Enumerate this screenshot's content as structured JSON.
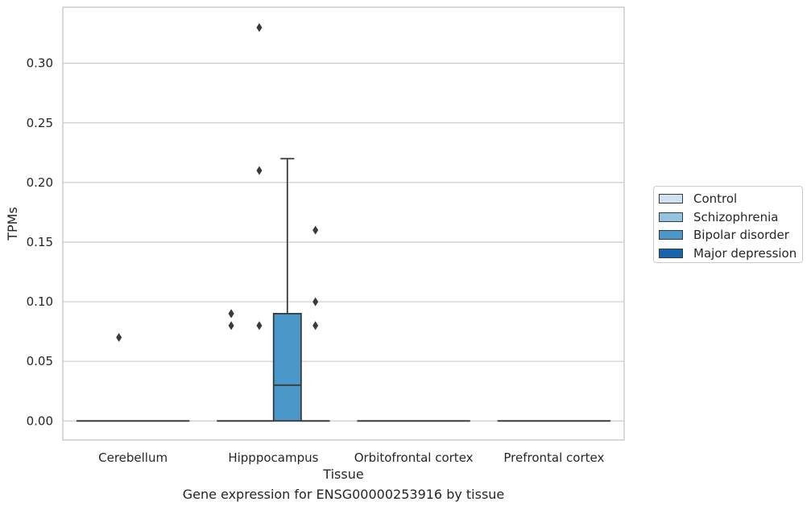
{
  "chart_data": {
    "type": "box",
    "xlabel": "Tissue",
    "ylabel": "TPMs",
    "caption": "Gene expression for ENSG00000253916 by tissue",
    "categories": [
      "Cerebellum",
      "Hipppocampus",
      "Orbitofrontal cortex",
      "Prefrontal cortex"
    ],
    "ylim": [
      -0.016,
      0.347
    ],
    "yticks": [
      0.0,
      0.05,
      0.1,
      0.15,
      0.2,
      0.25,
      0.3
    ],
    "ytick_labels": [
      "0.00",
      "0.05",
      "0.10",
      "0.15",
      "0.20",
      "0.25",
      "0.30"
    ],
    "grid": true,
    "legend_position": "right",
    "series": [
      {
        "name": "Control",
        "color": "#d0e1f2",
        "boxes": [
          {
            "q1": 0,
            "median": 0,
            "q3": 0,
            "whisker_low": 0,
            "whisker_high": 0,
            "outliers": []
          },
          {
            "q1": 0,
            "median": 0,
            "q3": 0,
            "whisker_low": 0,
            "whisker_high": 0,
            "outliers": [
              0.08,
              0.09,
              0.09
            ]
          },
          {
            "q1": 0,
            "median": 0,
            "q3": 0,
            "whisker_low": 0,
            "whisker_high": 0,
            "outliers": []
          },
          {
            "q1": 0,
            "median": 0,
            "q3": 0,
            "whisker_low": 0,
            "whisker_high": 0,
            "outliers": []
          }
        ]
      },
      {
        "name": "Schizophrenia",
        "color": "#94c4df",
        "boxes": [
          {
            "q1": 0,
            "median": 0,
            "q3": 0,
            "whisker_low": 0,
            "whisker_high": 0,
            "outliers": [
              0.07
            ]
          },
          {
            "q1": 0,
            "median": 0,
            "q3": 0,
            "whisker_low": 0,
            "whisker_high": 0,
            "outliers": [
              0.08,
              0.21,
              0.33
            ]
          },
          {
            "q1": 0,
            "median": 0,
            "q3": 0,
            "whisker_low": 0,
            "whisker_high": 0,
            "outliers": []
          },
          {
            "q1": 0,
            "median": 0,
            "q3": 0,
            "whisker_low": 0,
            "whisker_high": 0,
            "outliers": []
          }
        ]
      },
      {
        "name": "Bipolar disorder",
        "color": "#4a98c9",
        "boxes": [
          {
            "q1": 0,
            "median": 0,
            "q3": 0,
            "whisker_low": 0,
            "whisker_high": 0,
            "outliers": []
          },
          {
            "q1": 0,
            "median": 0.03,
            "q3": 0.09,
            "whisker_low": 0,
            "whisker_high": 0.22,
            "outliers": []
          },
          {
            "q1": 0,
            "median": 0,
            "q3": 0,
            "whisker_low": 0,
            "whisker_high": 0,
            "outliers": []
          },
          {
            "q1": 0,
            "median": 0,
            "q3": 0,
            "whisker_low": 0,
            "whisker_high": 0,
            "outliers": []
          }
        ]
      },
      {
        "name": "Major depression",
        "color": "#1764ab",
        "boxes": [
          {
            "q1": 0,
            "median": 0,
            "q3": 0,
            "whisker_low": 0,
            "whisker_high": 0,
            "outliers": []
          },
          {
            "q1": 0,
            "median": 0,
            "q3": 0,
            "whisker_low": 0,
            "whisker_high": 0,
            "outliers": [
              0.08,
              0.1,
              0.16
            ]
          },
          {
            "q1": 0,
            "median": 0,
            "q3": 0,
            "whisker_low": 0,
            "whisker_high": 0,
            "outliers": []
          },
          {
            "q1": 0,
            "median": 0,
            "q3": 0,
            "whisker_low": 0,
            "whisker_high": 0,
            "outliers": []
          }
        ]
      }
    ]
  },
  "legend": {
    "items": [
      {
        "label": "Control",
        "color": "#d0e1f2"
      },
      {
        "label": "Schizophrenia",
        "color": "#94c4df"
      },
      {
        "label": "Bipolar disorder",
        "color": "#4a98c9"
      },
      {
        "label": "Major depression",
        "color": "#1764ab"
      }
    ]
  },
  "colors": {
    "grid": "#cccccc",
    "box_edge": "#3a3a3a",
    "frame": "#cccccc"
  }
}
